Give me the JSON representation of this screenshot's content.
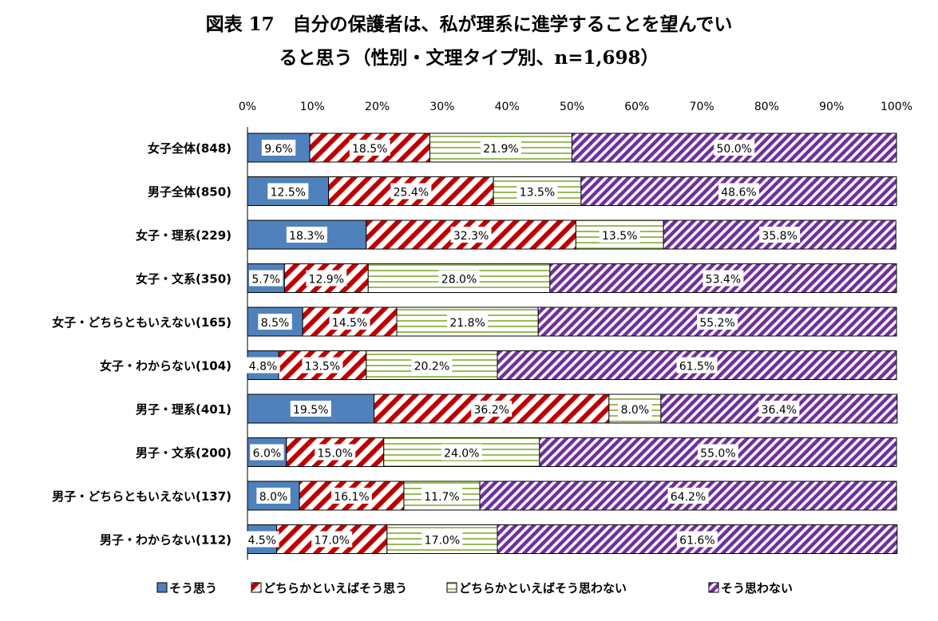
{
  "title": {
    "line1": "図表 17　自分の保護者は、私が理系に進学することを望んでい",
    "line2": "ると思う（性別・文理タイプ別、n=1,698）"
  },
  "chart_data": {
    "type": "bar",
    "orientation": "horizontal",
    "stacked": "percent",
    "xlim": [
      0,
      100
    ],
    "x_ticks": [
      "0%",
      "10%",
      "20%",
      "30%",
      "40%",
      "50%",
      "60%",
      "70%",
      "80%",
      "90%",
      "100%"
    ],
    "x_axis_position": "top",
    "grid": false,
    "legend_position": "bottom",
    "categories": [
      "女子全体(848)",
      "男子全体(850)",
      "女子・理系(229)",
      "女子・文系(350)",
      "女子・どちらともいえない(165)",
      "女子・わからない(104)",
      "男子・理系(401)",
      "男子・文系(200)",
      "男子・どちらともいえない(137)",
      "男子・わからない(112)"
    ],
    "series": [
      {
        "name": "そう思う",
        "values": [
          9.6,
          12.5,
          18.3,
          5.7,
          8.5,
          4.8,
          19.5,
          6.0,
          8.0,
          4.5
        ],
        "labels": [
          "9.6%",
          "12.5%",
          "18.3%",
          "5.7%",
          "8.5%",
          "4.8%",
          "19.5%",
          "6.0%",
          "8.0%",
          "4.5%"
        ],
        "color": "#4f81bd",
        "pattern": "solid"
      },
      {
        "name": "どちらかといえばそう思う",
        "values": [
          18.5,
          25.4,
          32.3,
          12.9,
          14.5,
          13.5,
          36.2,
          15.0,
          16.1,
          17.0
        ],
        "labels": [
          "18.5%",
          "25.4%",
          "32.3%",
          "12.9%",
          "14.5%",
          "13.5%",
          "36.2%",
          "15.0%",
          "16.1%",
          "17.0%"
        ],
        "color": "#c00000",
        "pattern": "diagonal-wide"
      },
      {
        "name": "どちらかといえばそう思わない",
        "values": [
          21.9,
          13.5,
          13.5,
          28.0,
          21.8,
          20.2,
          8.0,
          24.0,
          11.7,
          17.0
        ],
        "labels": [
          "21.9%",
          "13.5%",
          "13.5%",
          "28.0%",
          "21.8%",
          "20.2%",
          "8.0%",
          "24.0%",
          "11.7%",
          "17.0%"
        ],
        "color": "#9bbb59",
        "pattern": "horizontal"
      },
      {
        "name": "そう思わない",
        "values": [
          50.0,
          48.6,
          35.8,
          53.4,
          55.2,
          61.5,
          36.4,
          55.0,
          64.2,
          61.6
        ],
        "labels": [
          "50.0%",
          "48.6%",
          "35.8%",
          "53.4%",
          "55.2%",
          "61.5%",
          "36.4%",
          "55.0%",
          "64.2%",
          "61.6%"
        ],
        "color": "#7030a0",
        "pattern": "diagonal-dense"
      }
    ]
  }
}
